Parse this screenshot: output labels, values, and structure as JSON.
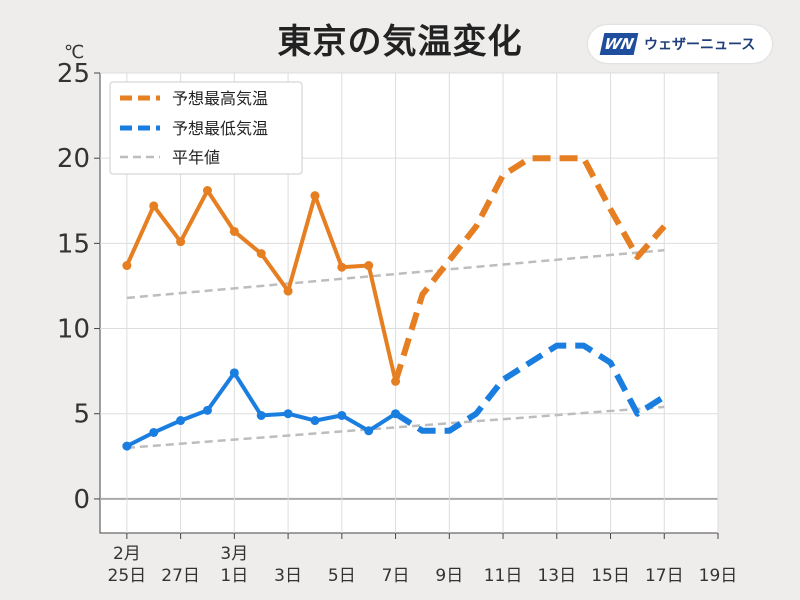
{
  "title": "東京の気温変化",
  "brand": {
    "mark": "WN",
    "name": "ウェザーニュース",
    "color": "#1f4f9c"
  },
  "chart_data": {
    "type": "line",
    "title": "東京の気温変化",
    "y_unit": "℃",
    "ylim": [
      -2,
      25
    ],
    "xlim": [
      -1,
      22
    ],
    "y_ticks": [
      0,
      5,
      10,
      15,
      20,
      25
    ],
    "grid": true,
    "legend_position": "top-left",
    "x_ticks": [
      {
        "day": 0,
        "month": "2月",
        "label": "25日"
      },
      {
        "day": 2,
        "month": "",
        "label": "27日"
      },
      {
        "day": 4,
        "month": "3月",
        "label": "1日"
      },
      {
        "day": 6,
        "month": "",
        "label": "3日"
      },
      {
        "day": 8,
        "month": "",
        "label": "5日"
      },
      {
        "day": 10,
        "month": "",
        "label": "7日"
      },
      {
        "day": 12,
        "month": "",
        "label": "9日"
      },
      {
        "day": 14,
        "month": "",
        "label": "11日"
      },
      {
        "day": 16,
        "month": "",
        "label": "13日"
      },
      {
        "day": 18,
        "month": "",
        "label": "15日"
      },
      {
        "day": 20,
        "month": "",
        "label": "17日"
      },
      {
        "day": 22,
        "month": "",
        "label": "19日"
      }
    ],
    "series": [
      {
        "name": "予想最高気温",
        "color": "#e67e22",
        "observed": [
          [
            0,
            13.7
          ],
          [
            1,
            17.2
          ],
          [
            2,
            15.1
          ],
          [
            3,
            18.1
          ],
          [
            4,
            15.7
          ],
          [
            5,
            14.4
          ],
          [
            6,
            12.2
          ],
          [
            7,
            17.8
          ],
          [
            8,
            13.6
          ],
          [
            9,
            13.7
          ],
          [
            10,
            6.9
          ]
        ],
        "forecast": [
          [
            10,
            6.9
          ],
          [
            11,
            12.0
          ],
          [
            12,
            14.0
          ],
          [
            13,
            16.0
          ],
          [
            14,
            19.0
          ],
          [
            15,
            20.0
          ],
          [
            16,
            20.0
          ],
          [
            17,
            20.0
          ],
          [
            18,
            17.0
          ],
          [
            19,
            14.2
          ],
          [
            20,
            16.0
          ]
        ]
      },
      {
        "name": "予想最低気温",
        "color": "#1a7ee0",
        "observed": [
          [
            0,
            3.1
          ],
          [
            1,
            3.9
          ],
          [
            2,
            4.6
          ],
          [
            3,
            5.2
          ],
          [
            4,
            7.4
          ],
          [
            5,
            4.9
          ],
          [
            6,
            5.0
          ],
          [
            7,
            4.6
          ],
          [
            8,
            4.9
          ],
          [
            9,
            4.0
          ],
          [
            10,
            5.0
          ]
        ],
        "forecast": [
          [
            10,
            5.0
          ],
          [
            11,
            4.0
          ],
          [
            12,
            4.0
          ],
          [
            13,
            5.0
          ],
          [
            14,
            7.0
          ],
          [
            15,
            8.0
          ],
          [
            16,
            9.0
          ],
          [
            17,
            9.0
          ],
          [
            18,
            8.0
          ],
          [
            19,
            5.0
          ],
          [
            20,
            6.0
          ]
        ]
      },
      {
        "name": "平年値",
        "color": "#bdbdbd",
        "normal_high": [
          [
            0,
            11.8
          ],
          [
            20,
            14.6
          ]
        ],
        "normal_low": [
          [
            0,
            3.0
          ],
          [
            20,
            5.4
          ]
        ]
      }
    ]
  }
}
